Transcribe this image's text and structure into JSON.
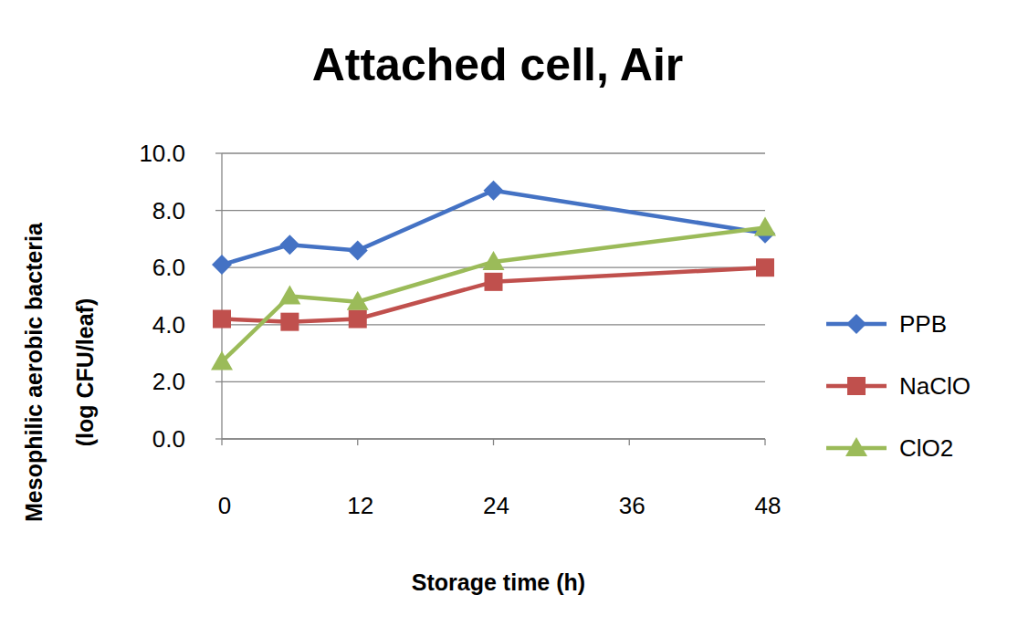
{
  "chart_data": {
    "type": "line",
    "title": "Attached cell, Air",
    "y_label": [
      "Mesophilic aerobic bacteria",
      "(log CFU/leaf)"
    ],
    "x_label": "Storage time (h)",
    "x": [
      0,
      6,
      12,
      24,
      48
    ],
    "series": [
      {
        "name": "PPB",
        "color": "#4472c4",
        "marker": "diamond",
        "values": [
          6.1,
          6.8,
          6.6,
          8.7,
          7.2
        ]
      },
      {
        "name": "NaClO",
        "color": "#c0504d",
        "marker": "square",
        "values": [
          4.2,
          4.1,
          4.2,
          5.5,
          6.0
        ]
      },
      {
        "name": "ClO2",
        "color": "#9bbb59",
        "marker": "triangle",
        "values": [
          2.7,
          5.0,
          4.8,
          6.2,
          7.4
        ]
      }
    ],
    "xlim": [
      0,
      48
    ],
    "xticks": [
      0,
      12,
      24,
      36,
      48
    ],
    "ylim": [
      0,
      10
    ],
    "yticks": [
      {
        "value": 0,
        "label": "0.0"
      },
      {
        "value": 2,
        "label": "2.0"
      },
      {
        "value": 4,
        "label": "4.0"
      },
      {
        "value": 6,
        "label": "6.0"
      },
      {
        "value": 8,
        "label": "8.0"
      },
      {
        "value": 10,
        "label": "10.0"
      }
    ],
    "grid": true,
    "legend": "right"
  }
}
